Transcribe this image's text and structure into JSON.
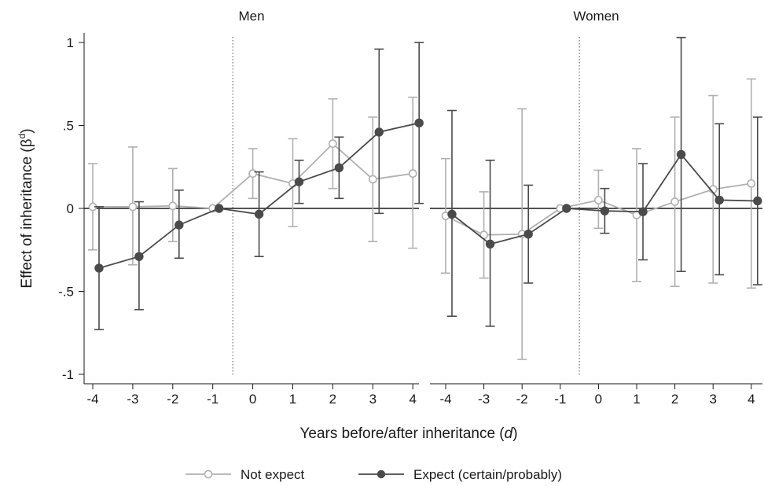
{
  "chart_data": {
    "type": "line",
    "ylabel_text": "Effect of inheritance (β",
    "ylabel_sup": "d",
    "ylabel_close": ")",
    "xlabel_pre": "Years before/after inheritance (",
    "xlabel_var": "d",
    "xlabel_post": ")",
    "ylim": [
      -1.1,
      1.1
    ],
    "yticks": [
      1,
      0.5,
      0,
      -0.5,
      -1
    ],
    "ytick_labels": [
      "1",
      ".5",
      "0",
      "-.5",
      "-1"
    ],
    "xticks": [
      -4,
      -3,
      -2,
      -1,
      0,
      1,
      2,
      3,
      4
    ],
    "xtick_labels": [
      "-4",
      "-3",
      "-2",
      "-1",
      "0",
      "1",
      "2",
      "3",
      "4"
    ],
    "reference_line_y": 0,
    "event_line_x": -0.5,
    "grid": false,
    "legend_position": "bottom",
    "colors": {
      "not_expect": "#b0b0b0",
      "expect": "#4a4a4a"
    },
    "legend": [
      "Not expect",
      "Expect (certain/probably)"
    ],
    "panels": [
      {
        "title": "Men",
        "series": [
          {
            "name": "Not expect",
            "key": "not_expect",
            "marker": "hollow",
            "x": [
              -4,
              -3,
              -2,
              -1,
              0,
              1,
              2,
              3,
              4
            ],
            "y": [
              0.01,
              0.01,
              0.015,
              0,
              0.21,
              0.15,
              0.39,
              0.175,
              0.21
            ],
            "lo": [
              -0.25,
              -0.34,
              -0.2,
              0,
              0.06,
              -0.11,
              0.12,
              -0.2,
              -0.24
            ],
            "hi": [
              0.27,
              0.37,
              0.24,
              0,
              0.36,
              0.42,
              0.66,
              0.55,
              0.67
            ]
          },
          {
            "name": "Expect (certain/probably)",
            "key": "expect",
            "marker": "solid",
            "x": [
              -4,
              -3,
              -2,
              -1,
              0,
              1,
              2,
              3,
              4
            ],
            "y": [
              -0.36,
              -0.29,
              -0.1,
              0,
              -0.035,
              0.16,
              0.245,
              0.46,
              0.515
            ],
            "lo": [
              -0.73,
              -0.61,
              -0.3,
              0,
              -0.29,
              0.03,
              0.06,
              -0.03,
              0.03
            ],
            "hi": [
              0.01,
              0.04,
              0.11,
              0,
              0.22,
              0.29,
              0.43,
              0.96,
              1.0
            ]
          }
        ]
      },
      {
        "title": "Women",
        "series": [
          {
            "name": "Not expect",
            "key": "not_expect",
            "marker": "hollow",
            "x": [
              -4,
              -3,
              -2,
              -1,
              0,
              1,
              2,
              3,
              4
            ],
            "y": [
              -0.045,
              -0.16,
              -0.155,
              0,
              0.05,
              -0.04,
              0.04,
              0.115,
              0.15
            ],
            "lo": [
              -0.39,
              -0.42,
              -0.91,
              0,
              -0.12,
              -0.44,
              -0.47,
              -0.45,
              -0.48
            ],
            "hi": [
              0.3,
              0.1,
              0.6,
              0,
              0.23,
              0.36,
              0.55,
              0.68,
              0.78
            ]
          },
          {
            "name": "Expect (certain/probably)",
            "key": "expect",
            "marker": "solid",
            "x": [
              -4,
              -3,
              -2,
              -1,
              0,
              1,
              2,
              3,
              4
            ],
            "y": [
              -0.035,
              -0.215,
              -0.155,
              0,
              -0.015,
              -0.02,
              0.325,
              0.05,
              0.045
            ],
            "lo": [
              -0.65,
              -0.71,
              -0.45,
              0,
              -0.15,
              -0.31,
              -0.38,
              -0.4,
              -0.46
            ],
            "hi": [
              0.59,
              0.29,
              0.14,
              0,
              0.12,
              0.27,
              1.03,
              0.51,
              0.55
            ]
          }
        ]
      }
    ]
  }
}
